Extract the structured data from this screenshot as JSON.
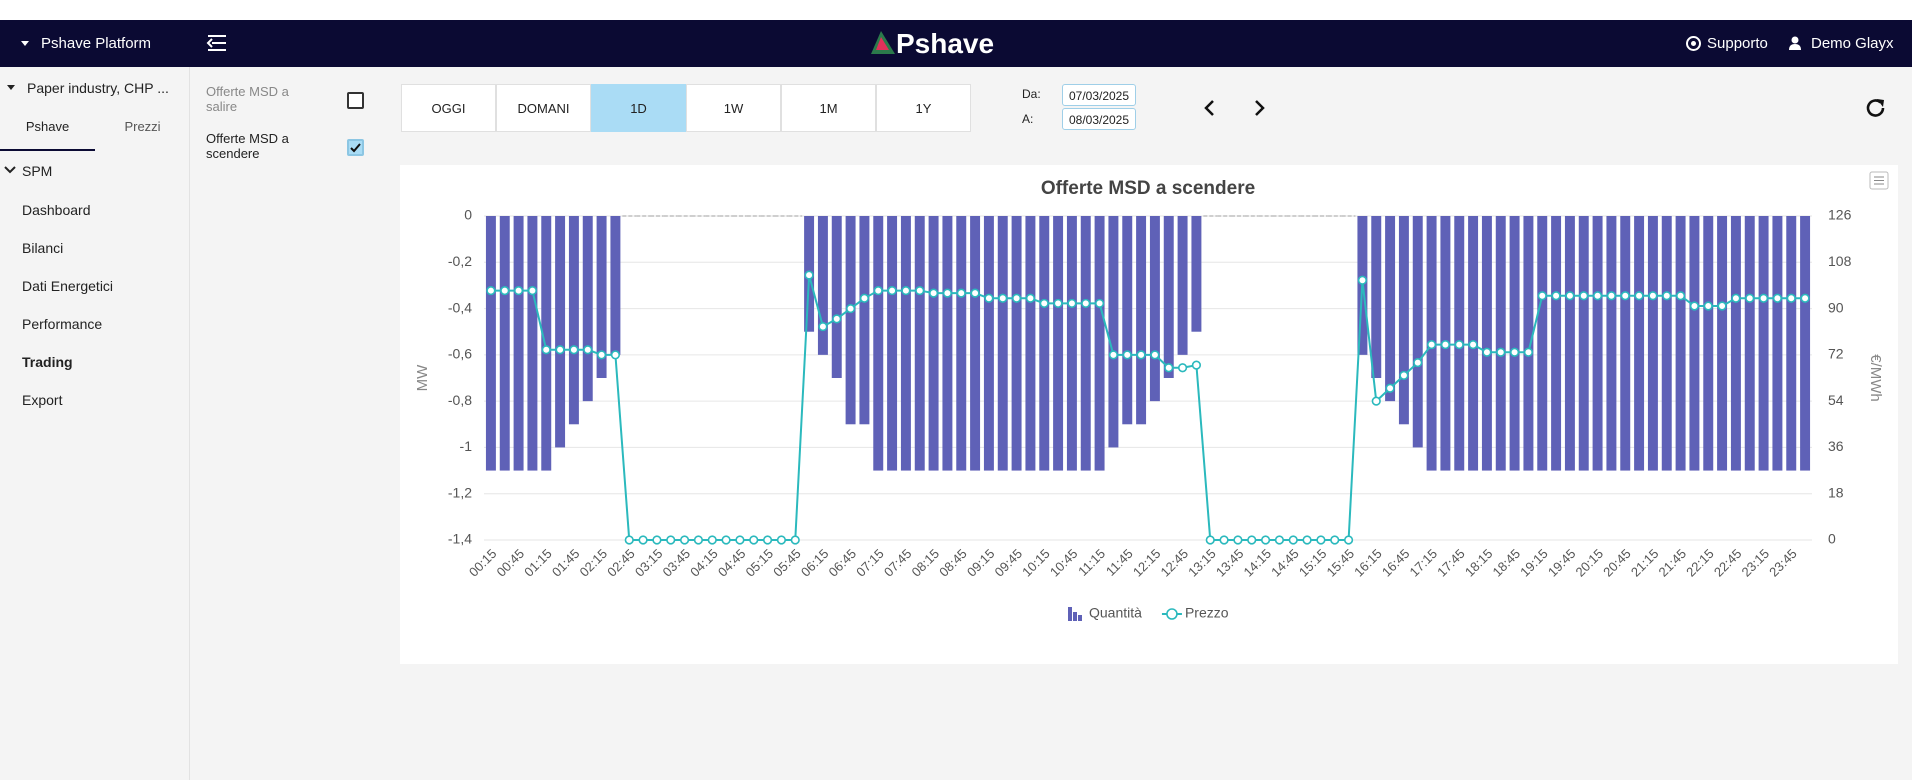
{
  "header": {
    "platform": "Pshave Platform",
    "brand": "Pshave",
    "support": "Supporto",
    "user": "Demo Glayx"
  },
  "sidebar": {
    "site": "Paper industry, CHP ...",
    "tabs": [
      {
        "label": "Pshave",
        "active": true
      },
      {
        "label": "Prezzi",
        "active": false
      }
    ],
    "section": "SPM",
    "items": [
      {
        "label": "Dashboard",
        "active": false
      },
      {
        "label": "Bilanci",
        "active": false
      },
      {
        "label": "Dati Energetici",
        "active": false
      },
      {
        "label": "Performance",
        "active": false
      },
      {
        "label": "Trading",
        "active": true
      },
      {
        "label": "Export",
        "active": false
      }
    ]
  },
  "filters": [
    {
      "label": "Offerte MSD a salire",
      "checked": false
    },
    {
      "label": "Offerte MSD a scendere",
      "checked": true
    }
  ],
  "toolbar": {
    "ranges": [
      {
        "label": "OGGI",
        "active": false
      },
      {
        "label": "DOMANI",
        "active": false
      },
      {
        "label": "1D",
        "active": true
      },
      {
        "label": "1W",
        "active": false
      },
      {
        "label": "1M",
        "active": false
      },
      {
        "label": "1Y",
        "active": false
      }
    ],
    "from_label": "Da:",
    "from": "07/03/2025",
    "to_label": "A:",
    "to": "08/03/2025"
  },
  "chart_data": {
    "type": "bar",
    "title": "Offerte MSD a scendere",
    "ylabel": "MW",
    "y2label": "€/MWh",
    "grid": true,
    "categories": [
      "00:15",
      null,
      "00:45",
      null,
      "01:15",
      null,
      "01:45",
      null,
      "02:15",
      null,
      "02:45",
      null,
      "03:15",
      null,
      "03:45",
      null,
      "04:15",
      null,
      "04:45",
      null,
      "05:15",
      null,
      "05:45",
      null,
      "06:15",
      null,
      "06:45",
      null,
      "07:15",
      null,
      "07:45",
      null,
      "08:15",
      null,
      "08:45",
      null,
      "09:15",
      null,
      "09:45",
      null,
      "10:15",
      null,
      "10:45",
      null,
      "11:15",
      null,
      "11:45",
      null,
      "12:15",
      null,
      "12:45",
      null,
      "13:15",
      null,
      "13:45",
      null,
      "14:15",
      null,
      "14:45",
      null,
      "15:15",
      null,
      "15:45",
      null,
      "16:15",
      null,
      "16:45",
      null,
      "17:15",
      null,
      "17:45",
      null,
      "18:15",
      null,
      "18:45",
      null,
      "19:15",
      null,
      "19:45",
      null,
      "20:15",
      null,
      "20:45",
      null,
      "21:15",
      null,
      "21:45",
      null,
      "22:15",
      null,
      "22:45",
      null,
      "23:15",
      null,
      "23:45",
      null
    ],
    "series": [
      {
        "name": "Quantità",
        "type": "bar",
        "color": "#5f61b7",
        "values": [
          -1.1,
          -1.1,
          -1.1,
          -1.1,
          -1.1,
          -1,
          -0.9,
          -0.8,
          -0.7,
          -0.6,
          0,
          0,
          0,
          0,
          0,
          0,
          0,
          0,
          0,
          0,
          0,
          0,
          0,
          -0.5,
          -0.6,
          -0.7,
          -0.9,
          -0.9,
          -1.1,
          -1.1,
          -1.1,
          -1.1,
          -1.1,
          -1.1,
          -1.1,
          -1.1,
          -1.1,
          -1.1,
          -1.1,
          -1.1,
          -1.1,
          -1.1,
          -1.1,
          -1.1,
          -1.1,
          -1,
          -0.9,
          -0.9,
          -0.8,
          -0.7,
          -0.6,
          -0.5,
          0,
          0,
          0,
          0,
          0,
          0,
          0,
          0,
          0,
          0,
          0,
          -0.6,
          -0.7,
          -0.8,
          -0.9,
          -1,
          -1.1,
          -1.1,
          -1.1,
          -1.1,
          -1.1,
          -1.1,
          -1.1,
          -1.1,
          -1.1,
          -1.1,
          -1.1,
          -1.1,
          -1.1,
          -1.1,
          -1.1,
          -1.1,
          -1.1,
          -1.1,
          -1.1,
          -1.1,
          -1.1,
          -1.1,
          -1.1,
          -1.1,
          -1.1,
          -1.1,
          -1.1,
          -1.1
        ]
      },
      {
        "name": "Prezzo",
        "type": "line",
        "axis": "y2",
        "color": "#2bb9bd",
        "values": [
          97,
          97,
          97,
          97,
          74,
          74,
          74,
          74,
          72,
          72,
          0,
          0,
          0,
          0,
          0,
          0,
          0,
          0,
          0,
          0,
          0,
          0,
          0,
          103,
          83,
          86,
          90,
          94,
          97,
          97,
          97,
          97,
          96,
          96,
          96,
          96,
          94,
          94,
          94,
          94,
          92,
          92,
          92,
          92,
          92,
          72,
          72,
          72,
          72,
          67,
          67,
          68,
          0,
          0,
          0,
          0,
          0,
          0,
          0,
          0,
          0,
          0,
          0,
          101,
          54,
          59,
          64,
          69,
          76,
          76,
          76,
          76,
          73,
          73,
          73,
          73,
          95,
          95,
          95,
          95,
          95,
          95,
          95,
          95,
          95,
          95,
          95,
          91,
          91,
          91,
          94,
          94,
          94,
          94,
          94,
          94
        ]
      }
    ],
    "ylim": [
      -1.4,
      0
    ],
    "yticks": [
      {
        "value": -1.4,
        "label": "-1,4"
      },
      {
        "value": -1.2,
        "label": "-1,2"
      },
      -1,
      {
        "value": -0.8,
        "label": "-0,8"
      },
      {
        "value": -0.6,
        "label": "-0,6"
      },
      {
        "value": -0.4,
        "label": "-0,4"
      },
      {
        "value": -0.2,
        "label": "-0,2"
      },
      0
    ],
    "y2lim": [
      0,
      126
    ],
    "y2ticks": [
      0,
      18,
      36,
      54,
      72,
      90,
      108,
      126
    ]
  }
}
